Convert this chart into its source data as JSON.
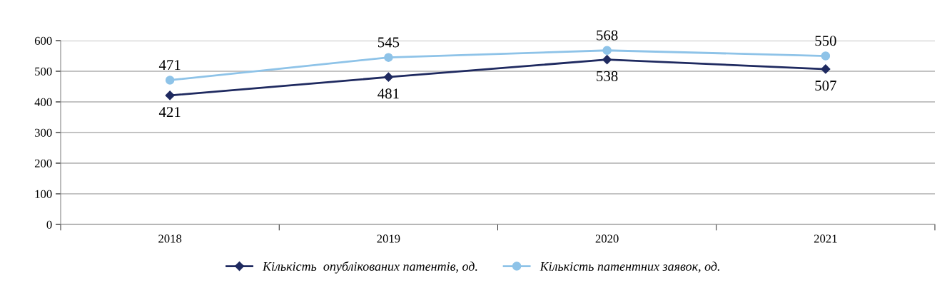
{
  "chart_data": {
    "type": "line",
    "categories": [
      "2018",
      "2019",
      "2020",
      "2021"
    ],
    "series": [
      {
        "name": "Кількість  опублікованих патентів, од.",
        "color": "#1f2a60",
        "values": [
          421,
          481,
          538,
          507
        ],
        "marker": "diamond"
      },
      {
        "name": "Кількість патентних заявок, од.",
        "color": "#8ec3e8",
        "values": [
          471,
          545,
          568,
          550
        ],
        "marker": "circle"
      }
    ],
    "ylim": [
      0,
      600
    ],
    "yticks": [
      0,
      100,
      200,
      300,
      400,
      500,
      600
    ],
    "grid": "y",
    "legend": "bottom",
    "data_labels": true,
    "line_style": "solid"
  }
}
